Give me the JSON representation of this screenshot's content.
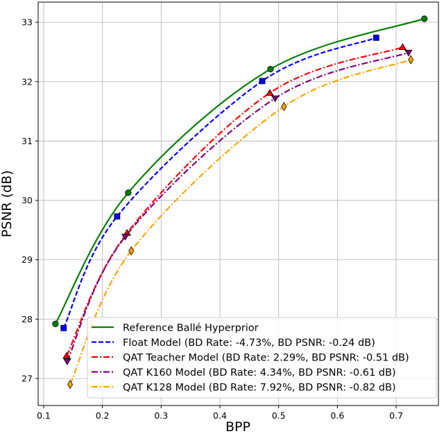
{
  "chart_data": {
    "type": "line",
    "title": "",
    "xlabel": "BPP",
    "ylabel": "PSNR (dB)",
    "xlim": [
      0.0906,
      0.772
    ],
    "ylim": [
      26.545,
      33.34
    ],
    "xticks": [
      0.1,
      0.2,
      0.3,
      0.4,
      0.5,
      0.6,
      0.7
    ],
    "xtick_labels": [
      "0.1",
      "0.2",
      "0.3",
      "0.4",
      "0.5",
      "0.6",
      "0.7"
    ],
    "yticks": [
      27,
      28,
      29,
      30,
      31,
      32,
      33
    ],
    "ytick_labels": [
      "27",
      "28",
      "29",
      "30",
      "31",
      "32",
      "33"
    ],
    "grid": true,
    "legend_position": "lower-right",
    "series": [
      {
        "name": "Reference Ballé Hyperprior",
        "color": "#008000",
        "dash": "solid",
        "marker": "circle",
        "x": [
          0.12,
          0.244,
          0.486,
          0.748
        ],
        "y": [
          27.92,
          30.13,
          32.21,
          33.06
        ]
      },
      {
        "name": "Float Model (BD Rate: -4.73%, BD PSNR: -0.24 dB)",
        "color": "#0000ff",
        "dash": "dashed",
        "marker": "square",
        "x": [
          0.134,
          0.225,
          0.472,
          0.666
        ],
        "y": [
          27.85,
          29.73,
          32.01,
          32.74
        ]
      },
      {
        "name": "QAT Teacher Model (BD Rate: 2.29%, BD PSNR: -0.51 dB)",
        "color": "#ff0000",
        "dash": "dashdot",
        "marker": "triangle-up",
        "x": [
          0.139,
          0.242,
          0.485,
          0.711
        ],
        "y": [
          27.38,
          29.45,
          31.81,
          32.58
        ]
      },
      {
        "name": "QAT K160 Model (BD Rate: 4.34%, BD PSNR: -0.61 dB)",
        "color": "#800080",
        "dash": "dashdot",
        "marker": "triangle-down",
        "x": [
          0.14,
          0.239,
          0.494,
          0.721
        ],
        "y": [
          27.29,
          29.39,
          31.72,
          32.49
        ]
      },
      {
        "name": "QAT K128 Model (BD Rate: 7.92%, BD PSNR: -0.82 dB)",
        "color": "#ffa500",
        "dash": "dashdot",
        "marker": "diamond",
        "x": [
          0.145,
          0.249,
          0.509,
          0.725
        ],
        "y": [
          26.9,
          29.15,
          31.58,
          32.37
        ]
      }
    ]
  }
}
